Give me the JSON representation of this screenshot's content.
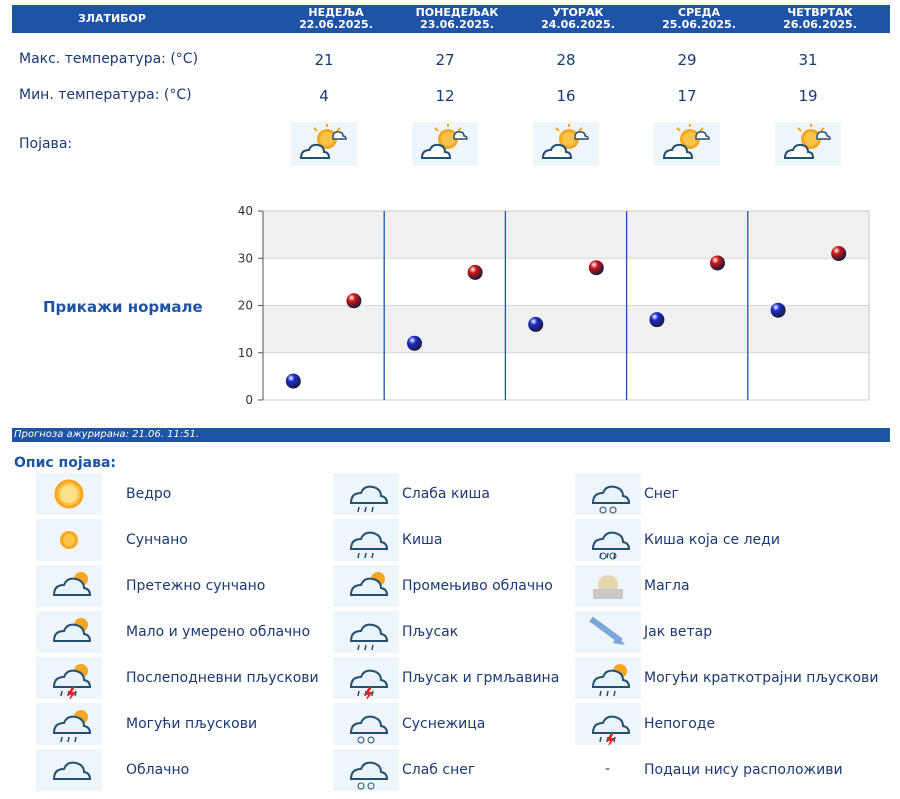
{
  "location": "ЗЛАТИБОР",
  "days": [
    {
      "name": "НЕДЕЉА",
      "date": "22.06.2025.",
      "max": "21",
      "min": "4"
    },
    {
      "name": "ПОНЕДЕЉАК",
      "date": "23.06.2025.",
      "max": "27",
      "min": "12"
    },
    {
      "name": "УТОРАК",
      "date": "24.06.2025.",
      "max": "28",
      "min": "16"
    },
    {
      "name": "СРЕДА",
      "date": "25.06.2025.",
      "max": "29",
      "min": "17"
    },
    {
      "name": "ЧЕТВРТАК",
      "date": "26.06.2025.",
      "max": "31",
      "min": "19"
    }
  ],
  "labels": {
    "max_temp": "Макс. температура: (°C)",
    "min_temp": "Мин. температура: (°C)",
    "phenomenon": "Појава:"
  },
  "show_normals": "Прикажи нормале",
  "updated": "Прогноза ажурирана:  21.06.  11:51.",
  "legend_title": "Опис појава:",
  "chart_data": {
    "type": "scatter",
    "ylim": [
      0,
      40
    ],
    "yticks": [
      "0",
      "10",
      "20",
      "30",
      "40"
    ],
    "series": [
      {
        "values": [
          4,
          12,
          16,
          17,
          19
        ],
        "color": "#1a2dcc"
      },
      {
        "values": [
          21,
          27,
          28,
          29,
          31
        ],
        "color": "#d01414"
      }
    ]
  },
  "legend": [
    [
      {
        "icon": "clear-sun-icon",
        "label": "Ведро"
      },
      {
        "icon": "sun-icon",
        "label": "Сунчано"
      },
      {
        "icon": "mostly-sunny-icon",
        "label": "Претежно сунчано"
      },
      {
        "icon": "partly-cloudy-icon",
        "label": "Мало и умерено облачно"
      },
      {
        "icon": "afternoon-showers-icon",
        "label": "Послеподневни пљускови"
      },
      {
        "icon": "possible-showers-icon",
        "label": "Могући пљускови"
      },
      {
        "icon": "cloud-icon",
        "label": "Облачно"
      }
    ],
    [
      {
        "icon": "light-rain-icon",
        "label": "Слаба киша"
      },
      {
        "icon": "rain-icon",
        "label": "Киша"
      },
      {
        "icon": "variable-cloudy-icon",
        "label": "Промењиво облачно"
      },
      {
        "icon": "shower-icon",
        "label": "Пљусак"
      },
      {
        "icon": "thunderstorm-shower-icon",
        "label": "Пљусак и грмљавина"
      },
      {
        "icon": "sleet-icon",
        "label": "Суснежица"
      },
      {
        "icon": "light-snow-icon",
        "label": "Слаб снег"
      }
    ],
    [
      {
        "icon": "snow-icon",
        "label": "Снег"
      },
      {
        "icon": "freezing-rain-icon",
        "label": "Киша која се леди"
      },
      {
        "icon": "fog-icon",
        "label": "Магла"
      },
      {
        "icon": "strong-wind-icon",
        "label": "Јак ветар"
      },
      {
        "icon": "possible-brief-showers-icon",
        "label": "Могући краткотрајни пљускови"
      },
      {
        "icon": "storm-icon",
        "label": "Непогоде"
      },
      {
        "icon": "dash-icon",
        "label": "Подаци нису расположиви",
        "glyph": "-"
      }
    ]
  ]
}
